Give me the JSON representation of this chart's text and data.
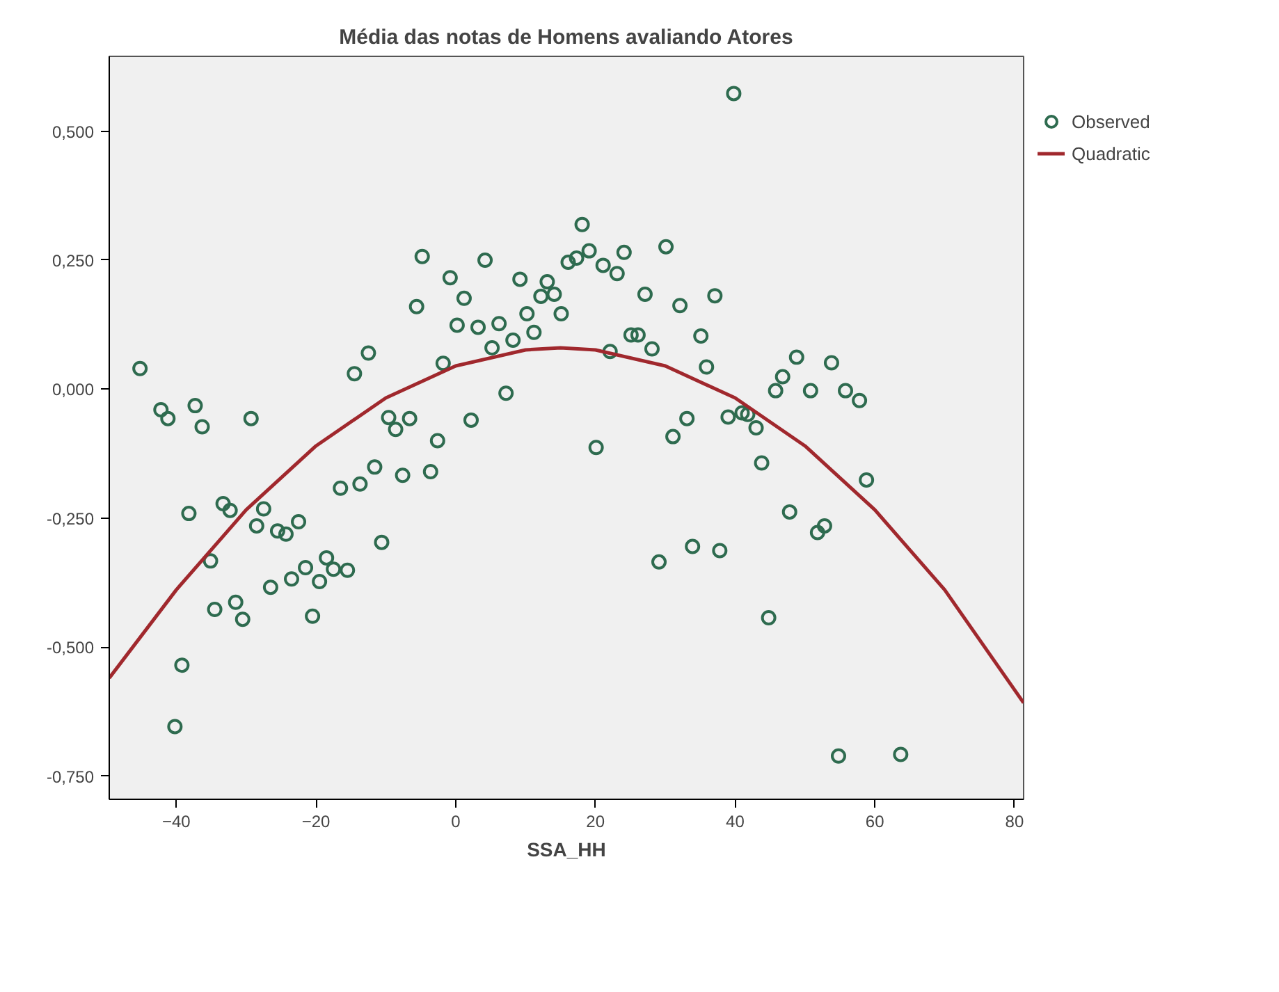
{
  "chart_data": {
    "type": "scatter",
    "title": "Média das notas de Homens avaliando Atores",
    "xlabel": "SSA_HH",
    "xlim": [
      -49.6,
      81.3
    ],
    "ylim": [
      -0.795,
      0.645
    ],
    "xticks": [
      -40,
      -20,
      0,
      20,
      40,
      60,
      80
    ],
    "yticks": [
      {
        "value": 0.5,
        "label": "0,500"
      },
      {
        "value": 0.25,
        "label": "0,250"
      },
      {
        "value": 0,
        "label": "0,000"
      },
      {
        "value": -0.25,
        "label": "-0,250"
      },
      {
        "value": -0.5,
        "label": "-0,500"
      },
      {
        "value": -0.75,
        "label": "-0,750"
      }
    ],
    "grid": false,
    "legend": "top right",
    "series": [
      {
        "name": "Observed",
        "marker": "circle",
        "color": "#2e6b4f",
        "x": [
          -45.2,
          -42.2,
          -37.3,
          -36.3,
          -41.2,
          -29.3,
          -9.6,
          -8.6,
          -6.6,
          2.2,
          -2.6,
          -3.6,
          -7.6,
          -11.6,
          -13.7,
          -16.5,
          -10.6,
          -38.2,
          -33.3,
          -32.3,
          -27.5,
          -28.5,
          -25.5,
          -24.3,
          -22.5,
          -35.1,
          -34.5,
          -31.5,
          -30.5,
          -26.5,
          -23.5,
          -21.5,
          -18.5,
          -17.5,
          -19.5,
          -15.5,
          -20.5,
          -39.2,
          -40.2,
          -14.5,
          -12.5,
          -4.8,
          4.2,
          -5.6,
          -0.8,
          1.2,
          0.2,
          3.2,
          6.2,
          9.2,
          13.1,
          12.2,
          14.1,
          15.1,
          10.2,
          11.2,
          8.2,
          5.2,
          -1.8,
          7.2,
          39.8,
          18.1,
          19.1,
          16.1,
          17.3,
          21.1,
          24.1,
          23.1,
          30.1,
          27.1,
          32.1,
          37.1,
          35.1,
          35.9,
          25.1,
          26.1,
          28.1,
          22.1,
          48.8,
          46.8,
          45.8,
          50.8,
          53.8,
          55.8,
          57.8,
          33.1,
          39.0,
          41.0,
          41.8,
          20.1,
          31.1,
          43.0,
          43.8,
          58.8,
          47.8,
          52.8,
          51.8,
          29.1,
          33.9,
          37.8,
          44.8,
          54.8,
          63.7
        ],
        "values": [
          0.04,
          -0.04,
          -0.032,
          -0.073,
          -0.057,
          -0.057,
          -0.055,
          -0.078,
          -0.057,
          -0.06,
          -0.1,
          -0.16,
          -0.167,
          -0.151,
          -0.184,
          -0.192,
          -0.297,
          -0.241,
          -0.222,
          -0.235,
          -0.232,
          -0.265,
          -0.275,
          -0.281,
          -0.257,
          -0.333,
          -0.427,
          -0.413,
          -0.446,
          -0.384,
          -0.368,
          -0.346,
          -0.327,
          -0.349,
          -0.373,
          -0.351,
          -0.44,
          -0.535,
          -0.654,
          0.03,
          0.07,
          0.257,
          0.25,
          0.16,
          0.216,
          0.176,
          0.124,
          0.12,
          0.127,
          0.213,
          0.208,
          0.18,
          0.184,
          0.146,
          0.146,
          0.11,
          0.095,
          0.08,
          0.05,
          -0.008,
          0.573,
          0.319,
          0.268,
          0.246,
          0.254,
          0.24,
          0.265,
          0.224,
          0.276,
          0.184,
          0.162,
          0.181,
          0.103,
          0.043,
          0.105,
          0.105,
          0.078,
          0.073,
          0.062,
          0.024,
          -0.003,
          -0.003,
          0.051,
          -0.003,
          -0.022,
          -0.057,
          -0.054,
          -0.046,
          -0.049,
          -0.113,
          -0.092,
          -0.075,
          -0.143,
          -0.176,
          -0.238,
          -0.265,
          -0.278,
          -0.335,
          -0.305,
          -0.313,
          -0.443,
          -0.711,
          -0.708
        ]
      },
      {
        "name": "Quadratic",
        "type": "line",
        "color": "#a0282d",
        "line_style": "solid",
        "x": [
          -49.6,
          -40,
          -30,
          -20,
          -10,
          0,
          10,
          15,
          20,
          30,
          40,
          50,
          60,
          70,
          81.3
        ],
        "values": [
          -0.56,
          -0.389,
          -0.234,
          -0.11,
          -0.017,
          0.045,
          0.076,
          0.08,
          0.076,
          0.045,
          -0.017,
          -0.11,
          -0.234,
          -0.389,
          -0.608
        ]
      }
    ]
  }
}
